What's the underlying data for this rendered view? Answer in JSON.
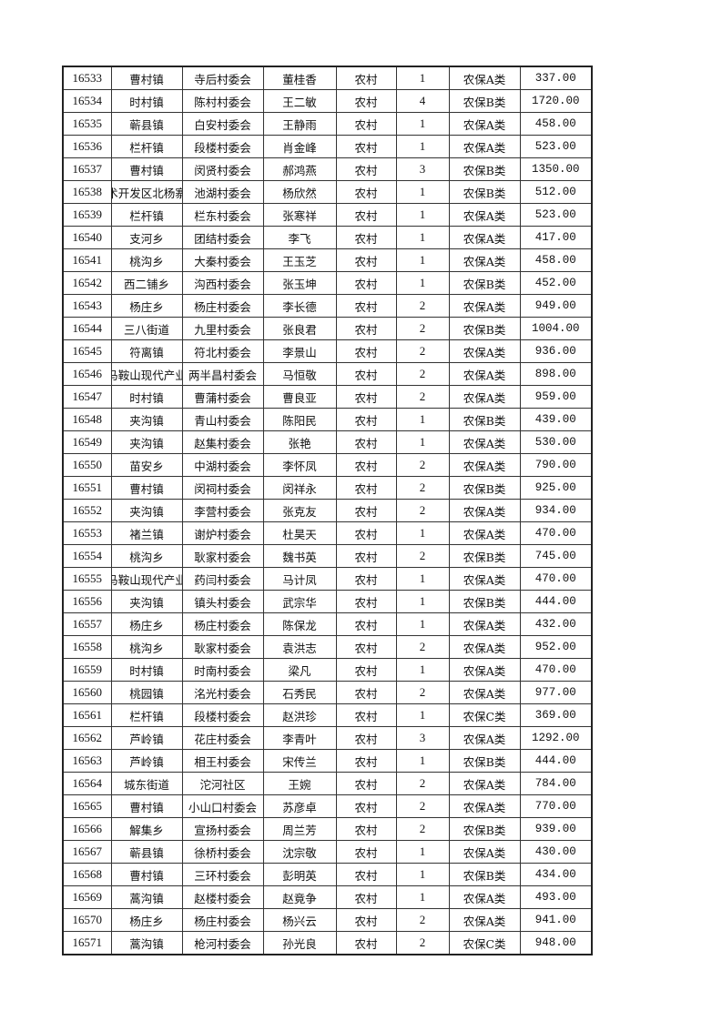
{
  "table": {
    "rows": [
      [
        "16533",
        "曹村镇",
        "寺后村委会",
        "董桂香",
        "农村",
        "1",
        "农保A类",
        "337.00"
      ],
      [
        "16534",
        "时村镇",
        "陈村村委会",
        "王二敏",
        "农村",
        "4",
        "农保B类",
        "1720.00"
      ],
      [
        "16535",
        "蕲县镇",
        "白安村委会",
        "王静雨",
        "农村",
        "1",
        "农保A类",
        "458.00"
      ],
      [
        "16536",
        "栏杆镇",
        "段楼村委会",
        "肖金峰",
        "农村",
        "1",
        "农保A类",
        "523.00"
      ],
      [
        "16537",
        "曹村镇",
        "闵贤村委会",
        "郝鸿燕",
        "农村",
        "3",
        "农保B类",
        "1350.00"
      ],
      [
        "16538",
        "术开发区北杨寨",
        "池湖村委会",
        "杨欣然",
        "农村",
        "1",
        "农保B类",
        "512.00"
      ],
      [
        "16539",
        "栏杆镇",
        "栏东村委会",
        "张寒祥",
        "农村",
        "1",
        "农保A类",
        "523.00"
      ],
      [
        "16540",
        "支河乡",
        "团结村委会",
        "李飞",
        "农村",
        "1",
        "农保A类",
        "417.00"
      ],
      [
        "16541",
        "桃沟乡",
        "大秦村委会",
        "王玉芝",
        "农村",
        "1",
        "农保A类",
        "458.00"
      ],
      [
        "16542",
        "西二铺乡",
        "沟西村委会",
        "张玉坤",
        "农村",
        "1",
        "农保B类",
        "452.00"
      ],
      [
        "16543",
        "杨庄乡",
        "杨庄村委会",
        "李长德",
        "农村",
        "2",
        "农保A类",
        "949.00"
      ],
      [
        "16544",
        "三八街道",
        "九里村委会",
        "张良君",
        "农村",
        "2",
        "农保B类",
        "1004.00"
      ],
      [
        "16545",
        "符离镇",
        "符北村委会",
        "李景山",
        "农村",
        "2",
        "农保A类",
        "936.00"
      ],
      [
        "16546",
        "马鞍山现代产业",
        "两半昌村委会",
        "马恒敬",
        "农村",
        "2",
        "农保A类",
        "898.00"
      ],
      [
        "16547",
        "时村镇",
        "曹蒲村委会",
        "曹良亚",
        "农村",
        "2",
        "农保A类",
        "959.00"
      ],
      [
        "16548",
        "夹沟镇",
        "青山村委会",
        "陈阳民",
        "农村",
        "1",
        "农保B类",
        "439.00"
      ],
      [
        "16549",
        "夹沟镇",
        "赵集村委会",
        "张艳",
        "农村",
        "1",
        "农保A类",
        "530.00"
      ],
      [
        "16550",
        "苗安乡",
        "中湖村委会",
        "李怀凤",
        "农村",
        "2",
        "农保A类",
        "790.00"
      ],
      [
        "16551",
        "曹村镇",
        "闵祠村委会",
        "闵祥永",
        "农村",
        "2",
        "农保B类",
        "925.00"
      ],
      [
        "16552",
        "夹沟镇",
        "李营村委会",
        "张克友",
        "农村",
        "2",
        "农保A类",
        "934.00"
      ],
      [
        "16553",
        "褚兰镇",
        "谢炉村委会",
        "杜昊天",
        "农村",
        "1",
        "农保A类",
        "470.00"
      ],
      [
        "16554",
        "桃沟乡",
        "耿家村委会",
        "魏书英",
        "农村",
        "2",
        "农保B类",
        "745.00"
      ],
      [
        "16555",
        "马鞍山现代产业",
        "药闫村委会",
        "马计凤",
        "农村",
        "1",
        "农保A类",
        "470.00"
      ],
      [
        "16556",
        "夹沟镇",
        "镇头村委会",
        "武宗华",
        "农村",
        "1",
        "农保B类",
        "444.00"
      ],
      [
        "16557",
        "杨庄乡",
        "杨庄村委会",
        "陈保龙",
        "农村",
        "1",
        "农保A类",
        "432.00"
      ],
      [
        "16558",
        "桃沟乡",
        "耿家村委会",
        "袁洪志",
        "农村",
        "2",
        "农保A类",
        "952.00"
      ],
      [
        "16559",
        "时村镇",
        "时南村委会",
        "梁凡",
        "农村",
        "1",
        "农保A类",
        "470.00"
      ],
      [
        "16560",
        "桃园镇",
        "洺光村委会",
        "石秀民",
        "农村",
        "2",
        "农保A类",
        "977.00"
      ],
      [
        "16561",
        "栏杆镇",
        "段楼村委会",
        "赵洪珍",
        "农村",
        "1",
        "农保C类",
        "369.00"
      ],
      [
        "16562",
        "芦岭镇",
        "花庄村委会",
        "李青叶",
        "农村",
        "3",
        "农保A类",
        "1292.00"
      ],
      [
        "16563",
        "芦岭镇",
        "相王村委会",
        "宋传兰",
        "农村",
        "1",
        "农保B类",
        "444.00"
      ],
      [
        "16564",
        "城东街道",
        "沱河社区",
        "王婉",
        "农村",
        "2",
        "农保A类",
        "784.00"
      ],
      [
        "16565",
        "曹村镇",
        "小山口村委会",
        "苏彦卓",
        "农村",
        "2",
        "农保A类",
        "770.00"
      ],
      [
        "16566",
        "解集乡",
        "宣扬村委会",
        "周兰芳",
        "农村",
        "2",
        "农保B类",
        "939.00"
      ],
      [
        "16567",
        "蕲县镇",
        "徐桥村委会",
        "沈宗敬",
        "农村",
        "1",
        "农保A类",
        "430.00"
      ],
      [
        "16568",
        "曹村镇",
        "三环村委会",
        "彭明英",
        "农村",
        "1",
        "农保B类",
        "434.00"
      ],
      [
        "16569",
        "蒿沟镇",
        "赵楼村委会",
        "赵竟争",
        "农村",
        "1",
        "农保A类",
        "493.00"
      ],
      [
        "16570",
        "杨庄乡",
        "杨庄村委会",
        "杨兴云",
        "农村",
        "2",
        "农保A类",
        "941.00"
      ],
      [
        "16571",
        "蒿沟镇",
        "枪河村委会",
        "孙光良",
        "农村",
        "2",
        "农保C类",
        "948.00"
      ]
    ]
  }
}
